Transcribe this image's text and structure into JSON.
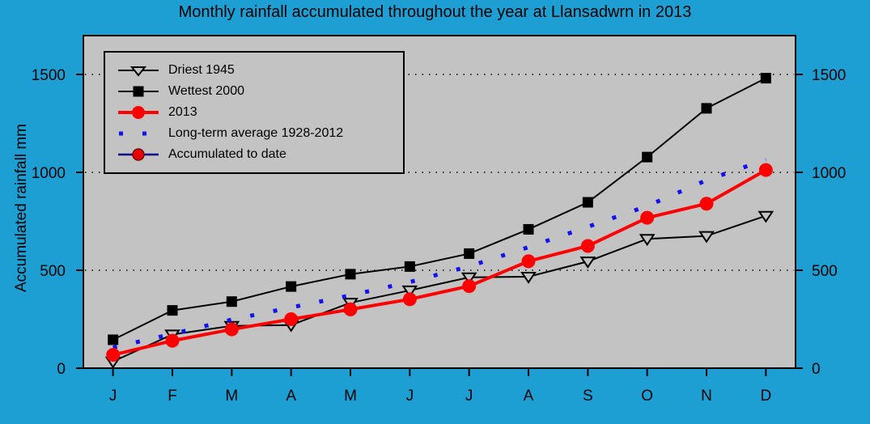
{
  "title": "Monthly rainfall accumulated throughout the year at Llansadwrn in 2013",
  "y_axis_label": "Accumulated rainfall mm",
  "colors": {
    "background": "#1d9fd4",
    "plot_background": "#c3c3c3",
    "axis": "#000000",
    "gridline": "#000000",
    "red": "#ff0000",
    "blue_dotted": "#1212ee",
    "navy": "#00008b",
    "dark_red": "#7a0000"
  },
  "chart_data": {
    "type": "line",
    "title": "Monthly rainfall accumulated throughout the year at Llansadwrn in 2013",
    "xlabel": "",
    "ylabel": "Accumulated rainfall mm",
    "categories": [
      "J",
      "F",
      "M",
      "A",
      "M",
      "J",
      "J",
      "A",
      "S",
      "O",
      "N",
      "D"
    ],
    "yticks": [
      0,
      500,
      1000,
      1500
    ],
    "ylim": [
      0,
      1698
    ],
    "grid": "horizontal dotted at yticks",
    "legend_position": "inside top-left",
    "series": [
      {
        "name": "Driest 1945",
        "color": "#000000",
        "marker": "triangle-down-open",
        "line": "solid",
        "values": [
          34,
          172,
          216,
          220,
          334,
          397,
          464,
          467,
          545,
          660,
          675,
          778
        ]
      },
      {
        "name": "Wettest 2000",
        "color": "#000000",
        "marker": "square-filled",
        "line": "solid",
        "values": [
          145,
          295,
          340,
          417,
          480,
          519,
          585,
          709,
          847,
          1078,
          1327,
          1481
        ]
      },
      {
        "name": "2013",
        "color": "#ff0000",
        "marker": "circle-filled",
        "line": "solid",
        "values": [
          68,
          140,
          198,
          250,
          300,
          352,
          419,
          546,
          624,
          768,
          840,
          1012
        ]
      },
      {
        "name": "Long-term average 1928-2012",
        "color": "#1212ee",
        "marker": "none",
        "line": "dotted",
        "values": [
          105,
          175,
          248,
          310,
          372,
          440,
          520,
          618,
          722,
          828,
          960,
          1065
        ]
      },
      {
        "name": "Accumulated to date",
        "color": "#00008b",
        "marker": "circle-red-darkedge",
        "line": "solid",
        "values": [
          68
        ]
      }
    ]
  }
}
